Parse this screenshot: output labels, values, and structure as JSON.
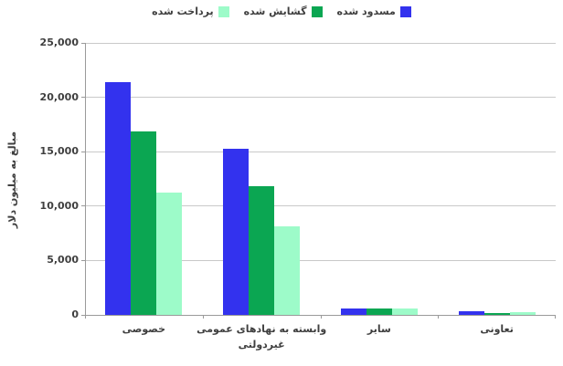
{
  "chart_data": {
    "type": "bar",
    "title": "",
    "categories": [
      "خصوصی",
      "وابسته به نهادهای عمومی\nغیردولتی",
      "سایر",
      "تعاونی"
    ],
    "series": [
      {
        "name": "مسدود شده",
        "color": "#3332EE",
        "values": [
          21400,
          15300,
          600,
          300
        ]
      },
      {
        "name": "گشایش شده",
        "color": "#0BA652",
        "values": [
          16900,
          11800,
          550,
          200
        ]
      },
      {
        "name": "پرداخت شده",
        "color": "#9DFBC9",
        "values": [
          11200,
          8100,
          600,
          250
        ]
      }
    ],
    "xlabel": "",
    "ylabel": "مبالغ به میلیون دلار",
    "ylim": [
      0,
      25000
    ],
    "yticks": [
      0,
      5000,
      10000,
      15000,
      20000,
      25000
    ],
    "ytick_labels": [
      "0",
      "5,000",
      "10,000",
      "15,000",
      "20,000",
      "25,000"
    ],
    "grid": "horizontal",
    "legend_position": "top"
  },
  "colors": {
    "grid": "#C9C9C9",
    "axis": "#9A9A9A",
    "text": "#3F3F3F",
    "background": "#FFFFFF"
  }
}
